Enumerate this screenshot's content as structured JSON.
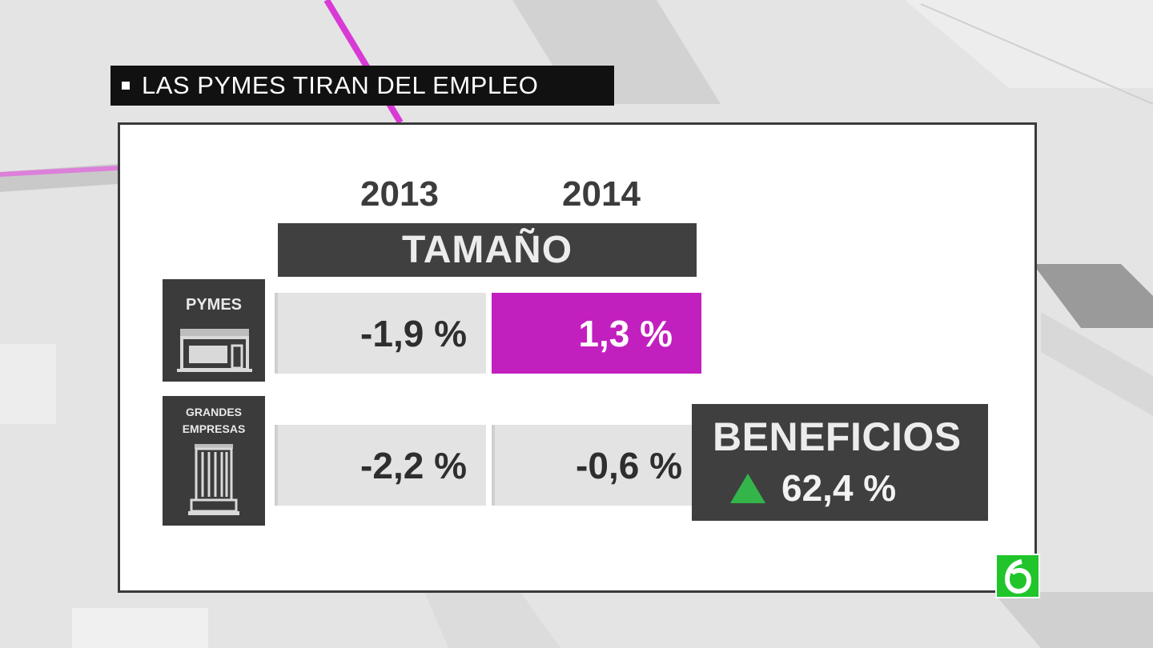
{
  "title": "LAS PYMES TIRAN DEL EMPLEO",
  "years": [
    "2013",
    "2014"
  ],
  "section_header": "TAMAÑO",
  "rows": [
    {
      "label_lines": [
        "PYMES"
      ],
      "values": [
        "-1,9 %",
        "1,3 %"
      ],
      "icon": "storefront-icon"
    },
    {
      "label_lines": [
        "GRANDES",
        "EMPRESAS"
      ],
      "values": [
        "-2,2 %",
        "-0,6 %"
      ],
      "icon": "office-building-icon"
    }
  ],
  "highlight": {
    "row": 0,
    "col": 1,
    "color": "#c21fbf"
  },
  "beneficios": {
    "label": "BENEFICIOS",
    "value": "62,4 %",
    "trend": "up",
    "arrow_color": "#33b54a",
    "icon": "up-triangle-icon"
  },
  "brand": {
    "icon": "la-sexta-logo-icon",
    "color": "#21c52b"
  }
}
